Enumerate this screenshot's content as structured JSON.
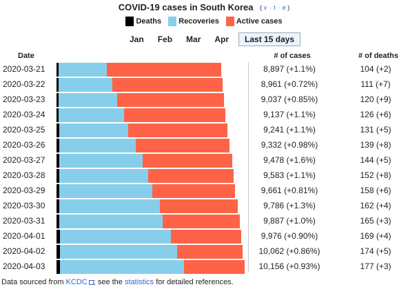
{
  "title": "COVID-19 cases in South Korea",
  "vte": {
    "open": "(",
    "v": "v",
    "sep1": "·",
    "t": "t",
    "sep2": "·",
    "e": "e",
    "close": ")"
  },
  "legend": [
    {
      "label": "Deaths",
      "color": "#000000"
    },
    {
      "label": "Recoveries",
      "color": "#87ceeb"
    },
    {
      "label": "Active cases",
      "color": "#ff6347"
    }
  ],
  "tabs": [
    "Jan",
    "Feb",
    "Mar",
    "Apr",
    "Last 15 days"
  ],
  "active_tab": "Last 15 days",
  "headers": {
    "date": "Date",
    "cases": "# of cases",
    "deaths": "# of deaths"
  },
  "chart_data": {
    "type": "bar",
    "stacked": true,
    "orientation": "horizontal",
    "categories": [
      "2020-03-21",
      "2020-03-22",
      "2020-03-23",
      "2020-03-24",
      "2020-03-25",
      "2020-03-26",
      "2020-03-27",
      "2020-03-28",
      "2020-03-29",
      "2020-03-30",
      "2020-03-31",
      "2020-04-01",
      "2020-04-02",
      "2020-04-03"
    ],
    "series": [
      {
        "name": "Deaths",
        "color": "#000000",
        "values": [
          104,
          111,
          120,
          126,
          131,
          139,
          144,
          152,
          158,
          162,
          165,
          169,
          174,
          177
        ]
      },
      {
        "name": "Recoveries",
        "color": "#87ceeb",
        "values": [
          2612,
          2909,
          3166,
          3507,
          3730,
          4144,
          4528,
          4811,
          5033,
          5408,
          5567,
          6021,
          6325,
          6694
        ]
      },
      {
        "name": "Active cases",
        "color": "#ff6347",
        "values": [
          6181,
          5941,
          5751,
          5504,
          5380,
          5049,
          4806,
          4620,
          4470,
          4216,
          4155,
          3786,
          3563,
          3285
        ]
      }
    ],
    "xlim": [
      0,
      10500
    ]
  },
  "rows": [
    {
      "date": "2020-03-21",
      "cases": "8,897 (+1.1%)",
      "deaths": "104 (+2)"
    },
    {
      "date": "2020-03-22",
      "cases": "8,961 (+0.72%)",
      "deaths": "111 (+7)"
    },
    {
      "date": "2020-03-23",
      "cases": "9,037 (+0.85%)",
      "deaths": "120 (+9)"
    },
    {
      "date": "2020-03-24",
      "cases": "9,137 (+1.1%)",
      "deaths": "126 (+6)"
    },
    {
      "date": "2020-03-25",
      "cases": "9,241 (+1.1%)",
      "deaths": "131 (+5)"
    },
    {
      "date": "2020-03-26",
      "cases": "9,332 (+0.98%)",
      "deaths": "139 (+8)"
    },
    {
      "date": "2020-03-27",
      "cases": "9,478 (+1.6%)",
      "deaths": "144 (+5)"
    },
    {
      "date": "2020-03-28",
      "cases": "9,583 (+1.1%)",
      "deaths": "152 (+8)"
    },
    {
      "date": "2020-03-29",
      "cases": "9,661 (+0.81%)",
      "deaths": "158 (+6)"
    },
    {
      "date": "2020-03-30",
      "cases": "9,786 (+1.3%)",
      "deaths": "162 (+4)"
    },
    {
      "date": "2020-03-31",
      "cases": "9,887 (+1.0%)",
      "deaths": "165 (+3)"
    },
    {
      "date": "2020-04-01",
      "cases": "9,976 (+0.90%)",
      "deaths": "169 (+4)"
    },
    {
      "date": "2020-04-02",
      "cases": "10,062 (+0.86%)",
      "deaths": "174 (+5)"
    },
    {
      "date": "2020-04-03",
      "cases": "10,156 (+0.93%)",
      "deaths": "177 (+3)"
    }
  ],
  "footer": {
    "prefix": "Data sourced from ",
    "link1": "KCDC",
    "middle": "; see the ",
    "link2": "statistics",
    "suffix": " for detailed references."
  },
  "icons": {
    "external_link": "external-link-icon"
  }
}
